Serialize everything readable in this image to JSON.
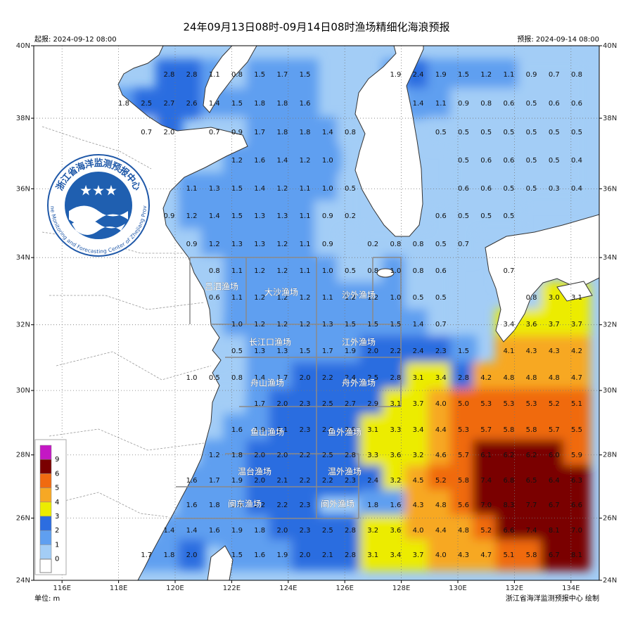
{
  "header": {
    "title": "24年09月13日08时-09月14日08时渔场精细化海浪预报",
    "issued": "起报: 2024-09-12 08:00",
    "valid": "预报: 2024-09-14 08:00"
  },
  "axes": {
    "lon_ticks": [
      {
        "value": 116,
        "label": "116E"
      },
      {
        "value": 118,
        "label": "118E"
      },
      {
        "value": 120,
        "label": "120E"
      },
      {
        "value": 122,
        "label": "122E"
      },
      {
        "value": 124,
        "label": "124E"
      },
      {
        "value": 126,
        "label": "126E"
      },
      {
        "value": 128,
        "label": "128E"
      },
      {
        "value": 130,
        "label": "130E"
      },
      {
        "value": 132,
        "label": "132E"
      },
      {
        "value": 134,
        "label": "134E"
      }
    ],
    "lat_ticks": [
      {
        "value": 40,
        "label": "40N"
      },
      {
        "value": 38,
        "label": "38N"
      },
      {
        "value": 36,
        "label": "36N"
      },
      {
        "value": 34,
        "label": "34N"
      },
      {
        "value": 32,
        "label": "32N"
      },
      {
        "value": 30,
        "label": "30N"
      },
      {
        "value": 28,
        "label": "28N"
      },
      {
        "value": 26,
        "label": "26N"
      },
      {
        "value": 24,
        "label": "24N"
      }
    ]
  },
  "legend": {
    "entries": [
      {
        "label": "9",
        "color": "#c417c4"
      },
      {
        "label": "6",
        "color": "#7a0000"
      },
      {
        "label": "5",
        "color": "#f06a10"
      },
      {
        "label": "4",
        "color": "#f7a824"
      },
      {
        "label": "3",
        "color": "#ecec00"
      },
      {
        "label": "2",
        "color": "#2c6de0"
      },
      {
        "label": "1",
        "color": "#5f9ff0"
      },
      {
        "label": "0",
        "color": "#a3cdf6"
      }
    ],
    "unit": "单位: m"
  },
  "zones": [
    "吕泗渔场",
    "大沙渔场",
    "沙外渔场",
    "长江口渔场",
    "江外渔场",
    "舟山渔场",
    "舟外渔场",
    "鱼山渔场",
    "鱼外渔场",
    "温台渔场",
    "温外渔场",
    "闽东渔场",
    "闽外渔场"
  ],
  "wave_grid": [
    [
      null,
      null,
      "2.8",
      "2.8",
      "1.1",
      "0.8",
      "1.5",
      "1.7",
      "1.5",
      null,
      null,
      null,
      "1.9",
      "2.4",
      "1.9",
      "1.5",
      "1.2",
      "1.1",
      "0.9",
      "0.7",
      "0.8"
    ],
    [
      "1.8",
      "2.5",
      "2.7",
      "2.6",
      "1.4",
      "1.5",
      "1.8",
      "1.8",
      "1.6",
      null,
      null,
      null,
      null,
      "1.4",
      "1.1",
      "0.9",
      "0.8",
      "0.6",
      "0.5",
      "0.6",
      "0.6"
    ],
    [
      null,
      "0.7",
      "2.0",
      null,
      "0.7",
      "0.9",
      "1.7",
      "1.8",
      "1.8",
      "1.4",
      "0.8",
      null,
      null,
      null,
      "0.5",
      "0.5",
      "0.5",
      "0.5",
      "0.5",
      "0.5",
      "0.5"
    ],
    [
      null,
      null,
      null,
      null,
      null,
      "1.2",
      "1.6",
      "1.4",
      "1.2",
      "1.0",
      null,
      null,
      null,
      null,
      null,
      "0.5",
      "0.6",
      "0.6",
      "0.5",
      "0.5",
      "0.4"
    ],
    [
      null,
      null,
      null,
      "1.1",
      "1.3",
      "1.5",
      "1.4",
      "1.2",
      "1.1",
      "1.0",
      "0.5",
      null,
      null,
      null,
      null,
      "0.6",
      "0.6",
      "0.5",
      "0.5",
      "0.3",
      "0.4"
    ],
    [
      null,
      null,
      "0.9",
      "1.2",
      "1.4",
      "1.5",
      "1.3",
      "1.3",
      "1.1",
      "0.9",
      "0.2",
      null,
      null,
      null,
      "0.6",
      "0.5",
      "0.5",
      "0.5",
      null,
      null,
      null
    ],
    [
      null,
      null,
      null,
      "0.9",
      "1.2",
      "1.3",
      "1.3",
      "1.2",
      "1.1",
      "0.9",
      null,
      "0.2",
      "0.8",
      "0.8",
      "0.5",
      "0.7",
      null,
      null,
      null,
      null,
      null
    ],
    [
      null,
      null,
      null,
      null,
      "0.8",
      "1.1",
      "1.2",
      "1.2",
      "1.1",
      "1.0",
      "0.5",
      "0.8",
      "1.0",
      "0.8",
      "0.6",
      null,
      null,
      "0.7",
      null,
      null,
      null
    ],
    [
      null,
      null,
      null,
      null,
      "0.6",
      "1.1",
      "1.2",
      "1.2",
      "1.2",
      "1.1",
      "1.2",
      "1.2",
      "1.0",
      "0.5",
      "0.5",
      null,
      null,
      null,
      "0.8",
      "3.0",
      "3.1"
    ],
    [
      null,
      null,
      null,
      null,
      null,
      "1.0",
      "1.2",
      "1.2",
      "1.2",
      "1.3",
      "1.5",
      "1.5",
      "1.5",
      "1.4",
      "0.7",
      null,
      null,
      "3.4",
      "3.6",
      "3.7",
      "3.7"
    ],
    [
      null,
      null,
      null,
      null,
      null,
      "0.5",
      "1.3",
      "1.3",
      "1.5",
      "1.7",
      "1.9",
      "2.0",
      "2.2",
      "2.4",
      "2.3",
      "1.5",
      null,
      "4.1",
      "4.3",
      "4.3",
      "4.2"
    ],
    [
      null,
      null,
      null,
      "1.0",
      "0.5",
      "0.8",
      "1.4",
      "1.7",
      "2.0",
      "2.2",
      "2.4",
      "2.5",
      "2.8",
      "3.1",
      "3.4",
      "2.8",
      "4.2",
      "4.8",
      "4.8",
      "4.8",
      "4.7"
    ],
    [
      null,
      null,
      null,
      null,
      null,
      null,
      "1.7",
      "2.0",
      "2.3",
      "2.5",
      "2.7",
      "2.9",
      "3.1",
      "3.7",
      "4.0",
      "5.0",
      "5.3",
      "5.3",
      "5.3",
      "5.2",
      "5.1"
    ],
    [
      null,
      null,
      null,
      null,
      null,
      "1.6",
      "1.9",
      "2.1",
      "2.3",
      "2.6",
      "2.9",
      "3.1",
      "3.3",
      "3.4",
      "4.4",
      "5.3",
      "5.7",
      "5.8",
      "5.8",
      "5.7",
      "5.5"
    ],
    [
      null,
      null,
      null,
      null,
      "1.2",
      "1.8",
      "2.0",
      "2.0",
      "2.2",
      "2.5",
      "2.8",
      "3.3",
      "3.6",
      "3.2",
      "4.6",
      "5.7",
      "6.1",
      "6.2",
      "6.2",
      "6.0",
      "5.9"
    ],
    [
      null,
      null,
      null,
      "1.6",
      "1.7",
      "1.9",
      "2.0",
      "2.1",
      "2.2",
      "2.2",
      "2.3",
      "2.4",
      "3.2",
      "4.5",
      "5.2",
      "5.8",
      "7.4",
      "6.8",
      "6.5",
      "6.4",
      "6.3"
    ],
    [
      null,
      null,
      null,
      "1.6",
      "1.8",
      "1.9",
      "2.2",
      "2.2",
      "2.3",
      null,
      null,
      "1.8",
      "1.6",
      "4.3",
      "4.8",
      "5.6",
      "7.0",
      "8.3",
      "7.7",
      "6.7",
      "6.6"
    ],
    [
      null,
      null,
      "1.4",
      "1.4",
      "1.6",
      "1.9",
      "1.8",
      "2.0",
      "2.3",
      "2.5",
      "2.8",
      "3.2",
      "3.6",
      "4.0",
      "4.4",
      "4.8",
      "5.2",
      "6.6",
      "7.4",
      "8.1",
      "7.0"
    ],
    [
      null,
      "1.7",
      "1.8",
      "2.0",
      null,
      "1.5",
      "1.6",
      "1.9",
      "2.0",
      "2.1",
      "2.8",
      "3.1",
      "3.4",
      "3.7",
      "4.0",
      "4.3",
      "4.7",
      "5.1",
      "5.8",
      "6.7",
      "8.1"
    ]
  ],
  "logo": {
    "name_cn": "浙江省海洋监测预报中心",
    "name_en": "Marine Monitoring and Forecasting Center of Zhejiang Province"
  },
  "footer": {
    "credit": "浙江省海洋监测预报中心 绘制"
  }
}
